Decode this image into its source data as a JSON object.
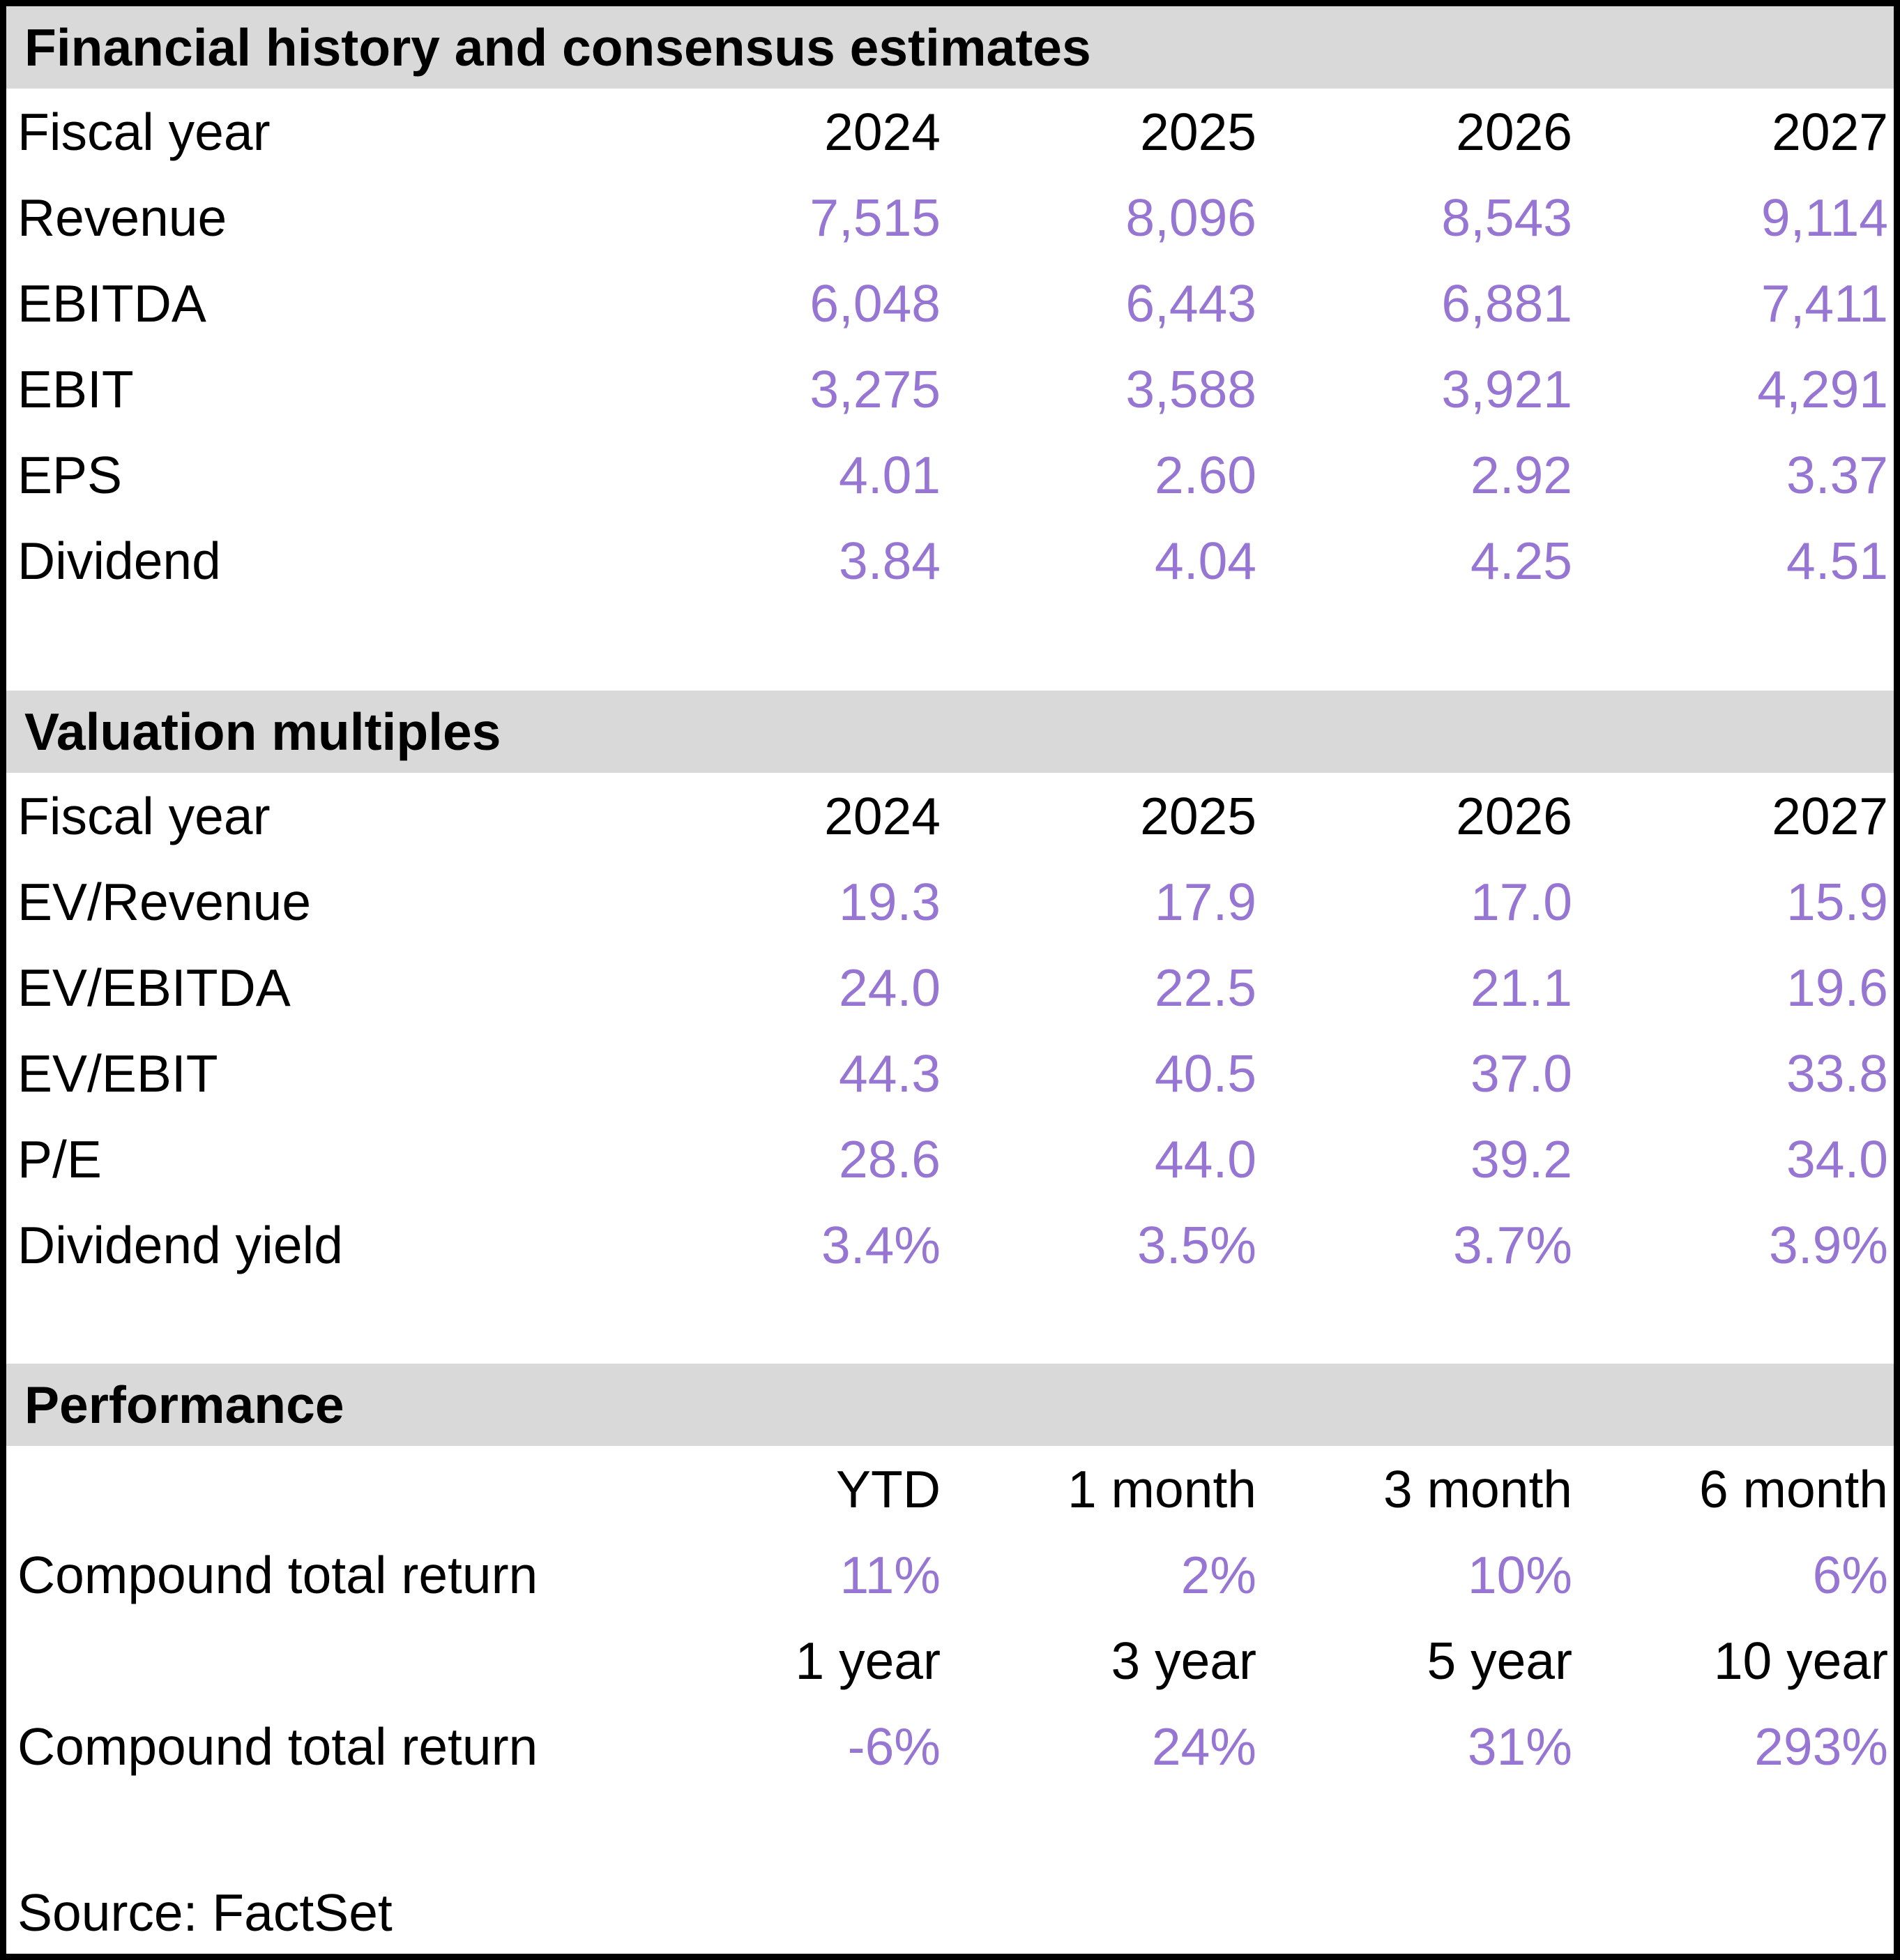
{
  "colors": {
    "accent_value_text": "#9675D3",
    "section_band_bg": "#D9D9D9",
    "border": "#000000",
    "text": "#000000"
  },
  "sections": [
    {
      "title": "Financial history and consensus estimates",
      "header": {
        "label": "Fiscal year",
        "cols": [
          "2024",
          "2025",
          "2026",
          "2027"
        ]
      },
      "rows": [
        {
          "label": "Revenue",
          "values": [
            "7,515",
            "8,096",
            "8,543",
            "9,114"
          ]
        },
        {
          "label": "EBITDA",
          "values": [
            "6,048",
            "6,443",
            "6,881",
            "7,411"
          ]
        },
        {
          "label": "EBIT",
          "values": [
            "3,275",
            "3,588",
            "3,921",
            "4,291"
          ]
        },
        {
          "label": "EPS",
          "values": [
            "4.01",
            "2.60",
            "2.92",
            "3.37"
          ]
        },
        {
          "label": "Dividend",
          "values": [
            "3.84",
            "4.04",
            "4.25",
            "4.51"
          ]
        }
      ]
    },
    {
      "title": "Valuation multiples",
      "header": {
        "label": "Fiscal year",
        "cols": [
          "2024",
          "2025",
          "2026",
          "2027"
        ]
      },
      "rows": [
        {
          "label": "EV/Revenue",
          "values": [
            "19.3",
            "17.9",
            "17.0",
            "15.9"
          ]
        },
        {
          "label": "EV/EBITDA",
          "values": [
            "24.0",
            "22.5",
            "21.1",
            "19.6"
          ]
        },
        {
          "label": "EV/EBIT",
          "values": [
            "44.3",
            "40.5",
            "37.0",
            "33.8"
          ]
        },
        {
          "label": "P/E",
          "values": [
            "28.6",
            "44.0",
            "39.2",
            "34.0"
          ]
        },
        {
          "label": "Dividend yield",
          "values": [
            "3.4%",
            "3.5%",
            "3.7%",
            "3.9%"
          ]
        }
      ]
    },
    {
      "title": "Performance",
      "groups": [
        {
          "header": [
            "YTD",
            "1 month",
            "3 month",
            "6 month"
          ],
          "label": "Compound total return",
          "values": [
            "11%",
            "2%",
            "10%",
            "6%"
          ]
        },
        {
          "header": [
            "1 year",
            "3 year",
            "5 year",
            "10 year"
          ],
          "label": "Compound total return",
          "values": [
            "-6%",
            "24%",
            "31%",
            "293%"
          ]
        }
      ]
    }
  ],
  "source": "Source: FactSet"
}
